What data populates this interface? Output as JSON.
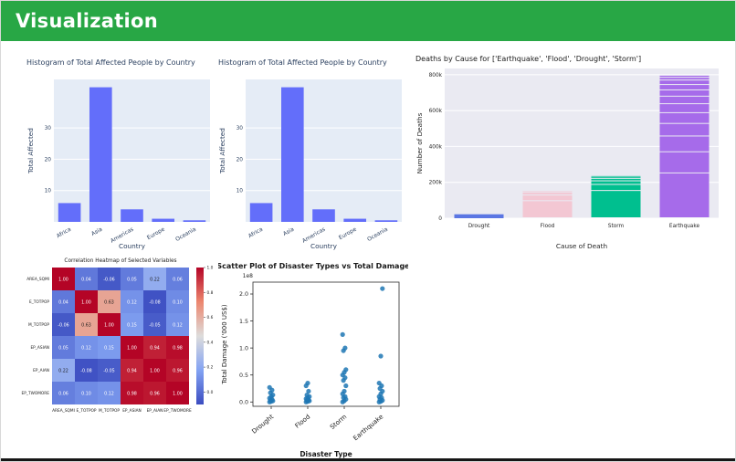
{
  "header": {
    "title": "Visualization"
  },
  "colors": {
    "header_bg": "#28a745",
    "header_text": "#ffffff",
    "page_border": "#d8d8d8",
    "plotly_bar": "#636efa",
    "plotly_plot_bg": "#e5ecf6",
    "scatter_dot": "#1f77b4"
  },
  "chart_data": [
    {
      "slot": "hist-left",
      "type": "bar",
      "title": "Histogram of Total Affected People by Country",
      "xlabel": "Country",
      "ylabel": "Total Affected",
      "categories": [
        "Africa",
        "Asia",
        "Americas",
        "Europe",
        "Oceania"
      ],
      "values": [
        6,
        43,
        4,
        1,
        0.5
      ],
      "yticks": [
        10,
        20,
        30
      ],
      "ytick_labels": [
        "10",
        "20",
        "30"
      ],
      "ylim": [
        0,
        45.5
      ],
      "bar_frac": 0.72,
      "xtick_rotate": -30,
      "title_align": "left",
      "m": {
        "l": 32,
        "t": 26,
        "r": 5,
        "b": 32
      },
      "style": {
        "plot_bg": "#e5ecf6",
        "grid": "#ffffff",
        "bar": "#636efa",
        "tick": "#2a3f5f",
        "label": "#2a3f5f",
        "title": "#2a3f5f"
      }
    },
    {
      "slot": "hist-mid",
      "type": "bar",
      "title": "Histogram of Total Affected People by Country",
      "xlabel": "Country",
      "ylabel": "Total Affected",
      "categories": [
        "Africa",
        "Asia",
        "Americas",
        "Europe",
        "Oceania"
      ],
      "values": [
        6,
        43,
        4,
        1,
        0.5
      ],
      "yticks": [
        10,
        20,
        30
      ],
      "ytick_labels": [
        "10",
        "20",
        "30"
      ],
      "ylim": [
        0,
        45.5
      ],
      "bar_frac": 0.72,
      "xtick_rotate": -30,
      "title_align": "left",
      "m": {
        "l": 32,
        "t": 26,
        "r": 5,
        "b": 32
      },
      "style": {
        "plot_bg": "#e5ecf6",
        "grid": "#ffffff",
        "bar": "#636efa",
        "tick": "#2a3f5f",
        "label": "#2a3f5f",
        "title": "#2a3f5f"
      }
    },
    {
      "slot": "deaths",
      "type": "stacked-bar",
      "title": "Deaths by Cause for ['Earthquake', 'Flood', 'Drought', 'Storm']",
      "xlabel": "Cause of Death",
      "ylabel": "Number of Deaths",
      "categories": [
        "Drought",
        "Flood",
        "Storm",
        "Earthquake"
      ],
      "totals": [
        22000,
        150000,
        235000,
        795000
      ],
      "segments": [
        [
          22000
        ],
        [
          95000,
          32000,
          15000,
          8000
        ],
        [
          152000,
          34000,
          20000,
          14000,
          9000,
          6000
        ],
        [
          250000,
          118000,
          88000,
          70000,
          60000,
          50000,
          42000,
          35000,
          30000,
          25000,
          15000,
          12000
        ]
      ],
      "yticks": [
        0,
        200000,
        400000,
        600000,
        800000
      ],
      "ytick_labels": [
        "0",
        "200k",
        "400k",
        "600k",
        "800k"
      ],
      "ylim": [
        0,
        835000
      ],
      "bar_frac": 0.72,
      "xtick_rotate": 0,
      "title_align": "left",
      "m": {
        "l": 34,
        "t": 18,
        "r": 6,
        "b": 36
      },
      "style": {
        "plot_bg": "#eaeaf2",
        "grid": "#ffffff",
        "bar_colors": [
          "#5b76e3",
          "#f3c7d3",
          "#00bf8f",
          "#a66bea"
        ],
        "tick": "#262626",
        "label": "#262626",
        "title": "#1a1a1a"
      }
    },
    {
      "slot": "heatmap",
      "type": "heatmap",
      "title": "Correlation Heatmap of Selected Variables",
      "labels": [
        "AREA_SQMI",
        "E_TOTPOP",
        "M_TOTPOP",
        "EP_ASIAN",
        "EP_AIAN",
        "EP_TWOMORE"
      ],
      "matrix": [
        [
          1.0,
          0.04,
          -0.06,
          0.05,
          0.22,
          0.06
        ],
        [
          0.04,
          1.0,
          0.63,
          0.12,
          -0.08,
          0.1
        ],
        [
          -0.06,
          0.63,
          1.0,
          0.15,
          -0.05,
          0.12
        ],
        [
          0.05,
          0.12,
          0.15,
          1.0,
          0.94,
          0.98
        ],
        [
          0.22,
          -0.08,
          -0.05,
          0.94,
          1.0,
          0.96
        ],
        [
          0.06,
          0.1,
          0.12,
          0.98,
          0.96,
          1.0
        ]
      ],
      "vmin": -0.1,
      "vmax": 1.0,
      "colorbar_ticks": [
        1.0,
        0.8,
        0.6,
        0.4,
        0.2,
        0.0
      ]
    },
    {
      "slot": "scatter",
      "type": "scatter",
      "title": "Scatter Plot of Disaster Types vs Total Damage",
      "xlabel": "Disaster Type",
      "ylabel": "Total Damage ('000 US$)",
      "offset_text": "1e8",
      "categories": [
        "Drought",
        "Flood",
        "Storm",
        "Earthquake"
      ],
      "values": [
        [
          0,
          0.01,
          0.02,
          0.03,
          0.05,
          0.07,
          0.1,
          0.13,
          0.17,
          0.22,
          0.27
        ],
        [
          0,
          0.01,
          0.02,
          0.03,
          0.04,
          0.06,
          0.08,
          0.1,
          0.13,
          0.2,
          0.3,
          0.35
        ],
        [
          0,
          0.02,
          0.05,
          0.08,
          0.1,
          0.15,
          0.2,
          0.3,
          0.4,
          0.45,
          0.5,
          0.55,
          0.6,
          0.95,
          1.0,
          1.25
        ],
        [
          0,
          0.01,
          0.03,
          0.05,
          0.08,
          0.1,
          0.15,
          0.2,
          0.25,
          0.3,
          0.35,
          0.85,
          2.1
        ]
      ],
      "yticks": [
        0.0,
        0.5,
        1.0,
        1.5,
        2.0
      ],
      "ytick_labels": [
        "0.0",
        "0.5",
        "1.0",
        "1.5",
        "2.0"
      ],
      "ylim": [
        -0.08,
        2.22
      ],
      "dot_color": "#1f77b4",
      "m": {
        "l": 38,
        "t": 26,
        "r": 10,
        "b": 60
      }
    }
  ]
}
